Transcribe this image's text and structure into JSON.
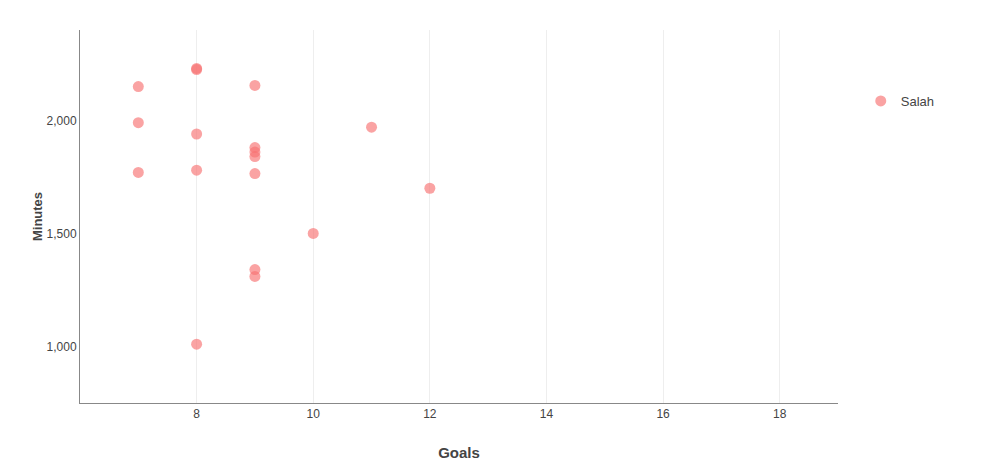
{
  "chart_data": {
    "type": "scatter",
    "xlabel": "Goals",
    "ylabel": "Minutes",
    "series": [
      {
        "name": "Salah",
        "color": "#f87171",
        "marker": "circle",
        "x": [
          7,
          7,
          7,
          8,
          8,
          8,
          8,
          8,
          9,
          9,
          9,
          9,
          9,
          9,
          9,
          10,
          11,
          12
        ],
        "values": [
          2150,
          1990,
          1770,
          2230,
          2225,
          1940,
          1780,
          1010,
          2155,
          1880,
          1860,
          1840,
          1765,
          1340,
          1310,
          1500,
          1970,
          1700
        ]
      }
    ],
    "xlim": [
      6,
      19
    ],
    "ylim": [
      750,
      2400
    ],
    "xticks": [
      8,
      10,
      12,
      14,
      16,
      18
    ],
    "yticks": [
      {
        "value": 1000,
        "label": "1,000"
      },
      {
        "value": 1500,
        "label": "1,500"
      },
      {
        "value": 2000,
        "label": "2,000"
      }
    ],
    "grid": "x",
    "legend": "right"
  }
}
